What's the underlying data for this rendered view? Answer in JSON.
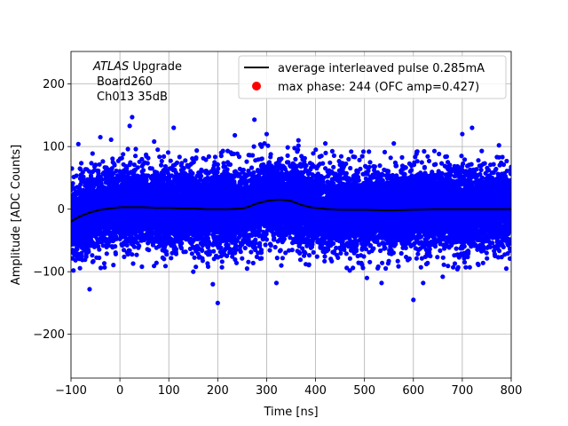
{
  "chart_data": {
    "type": "scatter",
    "xlabel": "Time [ns]",
    "ylabel": "Amplitude [ADC Counts]",
    "xlim": [
      -100,
      800
    ],
    "ylim": [
      -270,
      252
    ],
    "xticks": [
      -100,
      0,
      100,
      200,
      300,
      400,
      500,
      600,
      700,
      800
    ],
    "xtick_labels": [
      "−100",
      "0",
      "100",
      "200",
      "300",
      "400",
      "500",
      "600",
      "700",
      "800"
    ],
    "yticks": [
      -200,
      -100,
      0,
      100,
      200
    ],
    "ytick_labels": [
      "−200",
      "−100",
      "0",
      "100",
      "200"
    ],
    "grid": true,
    "legend_position": "top-right",
    "annotation": {
      "atlas": "ATLAS",
      "upgrade": " Upgrade",
      "board": "Board260",
      "channel": "Ch013 35dB"
    },
    "series": [
      {
        "name": "average interleaved pulse 0.285mA",
        "kind": "line",
        "color": "#000000",
        "x": [
          -100,
          -90,
          -80,
          -70,
          -60,
          -50,
          -40,
          -30,
          -20,
          -10,
          0,
          25,
          50,
          75,
          100,
          125,
          150,
          175,
          200,
          225,
          250,
          260,
          270,
          280,
          290,
          300,
          310,
          320,
          330,
          340,
          350,
          360,
          370,
          380,
          390,
          400,
          425,
          450,
          475,
          500,
          550,
          600,
          650,
          700,
          750,
          800
        ],
        "y": [
          -20,
          -15,
          -11,
          -8,
          -5,
          -3,
          -1,
          0,
          1,
          2,
          3,
          3,
          3,
          2,
          2,
          1,
          1,
          0,
          0,
          0,
          1,
          3,
          6,
          9,
          11,
          13,
          14,
          15,
          15,
          14,
          13,
          10,
          7,
          5,
          3,
          2,
          0,
          -1,
          -1,
          -1,
          -2,
          -1,
          0,
          0,
          0,
          0
        ]
      },
      {
        "name": "max phase: 244 (OFC amp=0.427)",
        "kind": "scatter",
        "color": "#0000ff",
        "legend_marker_color": "#ff0000",
        "outliers": [
          [
            -85,
            104
          ],
          [
            -78,
            -75
          ],
          [
            -62,
            -128
          ],
          [
            -40,
            115
          ],
          [
            -18,
            111
          ],
          [
            25,
            147
          ],
          [
            20,
            133
          ],
          [
            70,
            108
          ],
          [
            110,
            130
          ],
          [
            190,
            -120
          ],
          [
            200,
            -150
          ],
          [
            235,
            118
          ],
          [
            275,
            143
          ],
          [
            300,
            120
          ],
          [
            320,
            -118
          ],
          [
            365,
            110
          ],
          [
            420,
            105
          ],
          [
            505,
            -110
          ],
          [
            535,
            -118
          ],
          [
            560,
            105
          ],
          [
            600,
            -145
          ],
          [
            620,
            -118
          ],
          [
            660,
            -108
          ],
          [
            700,
            120
          ],
          [
            720,
            130
          ],
          [
            775,
            102
          ],
          [
            -95,
            -98
          ],
          [
            45,
            -92
          ],
          [
            150,
            -100
          ],
          [
            260,
            -95
          ],
          [
            330,
            -90
          ],
          [
            470,
            -98
          ],
          [
            690,
            -96
          ],
          [
            790,
            -95
          ]
        ],
        "noise": {
          "count": 14000,
          "sigma_adc": 30,
          "x_range": [
            -100,
            800
          ],
          "follows_line": true
        }
      }
    ]
  }
}
